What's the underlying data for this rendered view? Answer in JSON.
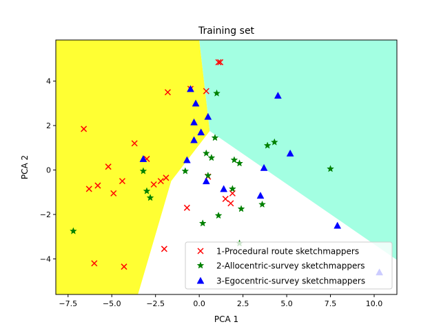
{
  "chart_data": {
    "type": "scatter",
    "title": "Training set",
    "xlabel": "PCA 1",
    "ylabel": "PCA 2",
    "xlim": [
      -8.2,
      11.3
    ],
    "ylim": [
      -5.6,
      5.85
    ],
    "xticks": [
      -7.5,
      -5.0,
      -2.5,
      0.0,
      2.5,
      5.0,
      7.5,
      10.0
    ],
    "xtick_labels": [
      "−7.5",
      "−5.0",
      "−2.5",
      "0.0",
      "2.5",
      "5.0",
      "7.5",
      "10.0"
    ],
    "yticks": [
      -4,
      -2,
      0,
      2,
      4
    ],
    "ytick_labels": [
      "−4",
      "−2",
      "0",
      "2",
      "4"
    ],
    "grid": false,
    "legend_position": "lower-right",
    "decision_regions": [
      {
        "class": "1-Procedural route sketchmappers",
        "color": "#ffff33",
        "polygon": [
          [
            -8.2,
            5.85
          ],
          [
            0.0,
            5.85
          ],
          [
            0.6,
            1.75
          ],
          [
            -1.6,
            -0.5
          ],
          [
            -3.5,
            -5.6
          ],
          [
            -8.2,
            -5.6
          ]
        ]
      },
      {
        "class": "3-Egocentric-survey sketchmappers",
        "color": "#a3ffe2",
        "polygon": [
          [
            0.0,
            5.85
          ],
          [
            11.3,
            5.85
          ],
          [
            11.3,
            -4.05
          ],
          [
            0.6,
            1.75
          ]
        ]
      },
      {
        "class": "2-Allocentric-survey sketchmappers",
        "color": "#ffffff",
        "polygon": [
          [
            0.6,
            1.75
          ],
          [
            11.3,
            -4.05
          ],
          [
            11.3,
            -5.6
          ],
          [
            -3.5,
            -5.6
          ],
          [
            -1.6,
            -0.5
          ]
        ]
      }
    ],
    "series": [
      {
        "name": "1-Procedural route sketchmappers",
        "marker": "x",
        "color": "#ff0000",
        "x": [
          1.1,
          1.2,
          -0.5,
          0.4,
          -1.8,
          -6.6,
          -3.7,
          -3.0,
          -5.2,
          -6.3,
          -5.8,
          -4.4,
          -4.9,
          -1.9,
          -2.2,
          -2.6,
          0.5,
          -0.7,
          1.5,
          1.8,
          1.9,
          -2.0,
          -6.0,
          -4.3
        ],
        "y": [
          4.85,
          4.85,
          3.65,
          3.55,
          3.5,
          1.85,
          1.2,
          0.5,
          0.15,
          -0.85,
          -0.7,
          -0.5,
          -1.05,
          -0.35,
          -0.5,
          -0.65,
          -0.3,
          -1.7,
          -1.3,
          -1.5,
          -1.05,
          -3.55,
          -4.2,
          -4.35
        ]
      },
      {
        "name": "2-Allocentric-survey sketchmappers",
        "marker": "*",
        "color": "#008000",
        "x": [
          1.0,
          0.9,
          0.4,
          0.7,
          2.0,
          2.3,
          -3.2,
          -0.8,
          0.5,
          -3.0,
          -2.8,
          1.9,
          2.4,
          1.1,
          0.2,
          -7.2,
          3.6,
          3.9,
          4.3,
          7.5,
          2.3
        ],
        "y": [
          3.45,
          1.45,
          0.75,
          0.55,
          0.45,
          0.3,
          -0.05,
          -0.05,
          -0.25,
          -0.95,
          -1.25,
          -0.85,
          -1.75,
          -2.05,
          -2.4,
          -2.75,
          -1.55,
          1.1,
          1.25,
          0.05,
          -3.3
        ]
      },
      {
        "name": "3-Egocentric-survey sketchmappers",
        "marker": "^",
        "color": "#0000ff",
        "x": [
          -0.5,
          4.5,
          -0.2,
          0.5,
          -0.3,
          0.1,
          -0.3,
          -3.2,
          -0.7,
          3.7,
          5.2,
          0.4,
          1.4,
          3.5,
          7.9,
          10.3
        ],
        "y": [
          3.65,
          3.35,
          3.0,
          2.4,
          2.15,
          1.7,
          1.35,
          0.5,
          0.45,
          0.1,
          0.75,
          -0.5,
          -0.85,
          -1.15,
          -2.5,
          -4.6
        ]
      }
    ]
  }
}
